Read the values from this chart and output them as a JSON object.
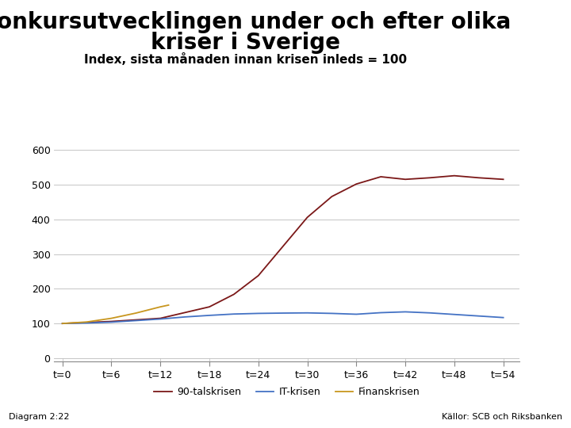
{
  "title_line1": "Konkursutvecklingen under och efter olika",
  "title_line2": "kriser i Sverige",
  "subtitle": "Index, sista månaden innan krisen inleds = 100",
  "xlabel_ticks": [
    "t=0",
    "t=6",
    "t=12",
    "t=18",
    "t=24",
    "t=30",
    "t=36",
    "t=42",
    "t=48",
    "t=54"
  ],
  "xtick_positions": [
    0,
    6,
    12,
    18,
    24,
    30,
    36,
    42,
    48,
    54
  ],
  "yticks": [
    0,
    100,
    200,
    300,
    400,
    500,
    600
  ],
  "ylim": [
    -10,
    650
  ],
  "xlim": [
    -1,
    56
  ],
  "line_90tal_color": "#7B1818",
  "line_IT_color": "#4472C4",
  "line_fin_color": "#C8961E",
  "legend_labels": [
    "90-talskrisen",
    "IT-krisen",
    "Finanskrisen"
  ],
  "footer_left": "Diagram 2:22",
  "footer_right": "Källor: SCB och Riksbanken",
  "bg_color": "#FFFFFF",
  "footer_bar_color": "#1A3A7A",
  "grid_color": "#BBBBBB",
  "title_fontsize": 20,
  "subtitle_fontsize": 11,
  "axis_fontsize": 9,
  "logo_color": "#1A3A7A"
}
